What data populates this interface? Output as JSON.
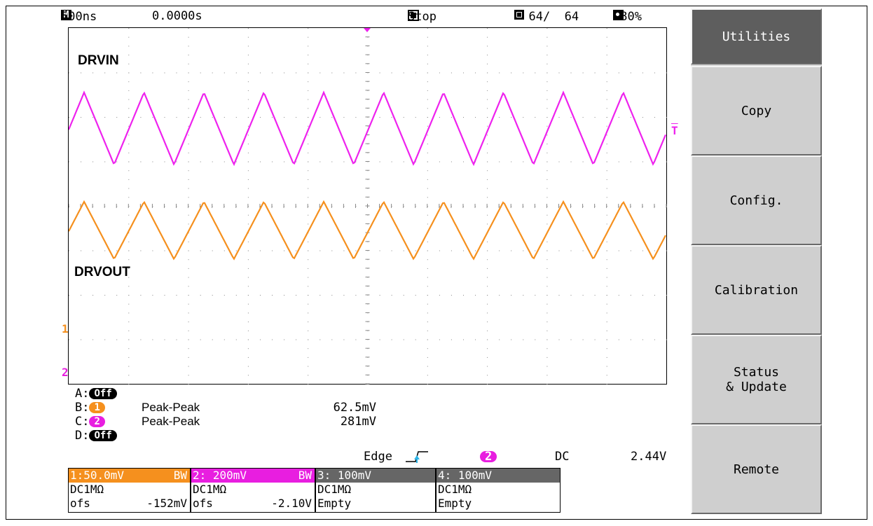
{
  "status_bar": {
    "timebase": "500ns",
    "position": "0.0000s",
    "run_state": "Stop",
    "acquisition": "64/  64",
    "intensity": "80%",
    "icons": [
      "m-icon",
      "stop-icon",
      "acquisition-icon",
      "intensity-icon"
    ]
  },
  "traces": {
    "ch1": {
      "label": "DRVIN",
      "color": "#ee22ee"
    },
    "ch2": {
      "label": "DRVOUT",
      "color": "#f5901e"
    },
    "trigger_marker": "T",
    "ch1_marker": "1",
    "ch2_marker": "2"
  },
  "measurements": [
    {
      "slot": "A:",
      "badge": "Off",
      "type": "",
      "value": ""
    },
    {
      "slot": "B:",
      "badge": "1",
      "type": "Peak-Peak",
      "value": "62.5mV"
    },
    {
      "slot": "C:",
      "badge": "2",
      "type": "Peak-Peak",
      "value": "281mV"
    },
    {
      "slot": "D:",
      "badge": "Off",
      "type": "",
      "value": ""
    }
  ],
  "trigger": {
    "mode": "Edge",
    "source": "2",
    "coupling": "DC",
    "level": "2.44V"
  },
  "channels": [
    {
      "head": "1:50.0mV",
      "bw": "BW",
      "line1": "DC1MΩ",
      "line2_label": "ofs",
      "line2_value": "-152mV",
      "color": "#f5901e"
    },
    {
      "head": "2: 200mV",
      "bw": "BW",
      "line1": "DC1MΩ",
      "line2_label": "ofs",
      "line2_value": "-2.10V",
      "color": "#e81ee0"
    },
    {
      "head": "3: 100mV",
      "bw": "",
      "line1": "DC1MΩ",
      "line2_label": "Empty",
      "line2_value": "",
      "color": "#666666"
    },
    {
      "head": "4: 100mV",
      "bw": "",
      "line1": "DC1MΩ",
      "line2_label": "Empty",
      "line2_value": "",
      "color": "#666666"
    }
  ],
  "menu": {
    "items": [
      {
        "label": "Utilities",
        "active": true
      },
      {
        "label": "Copy",
        "active": false
      },
      {
        "label": "Config.",
        "active": false
      },
      {
        "label": "Calibration",
        "active": false
      },
      {
        "label": "Status\n& Update",
        "active": false
      },
      {
        "label": "Remote",
        "active": false
      }
    ]
  }
}
